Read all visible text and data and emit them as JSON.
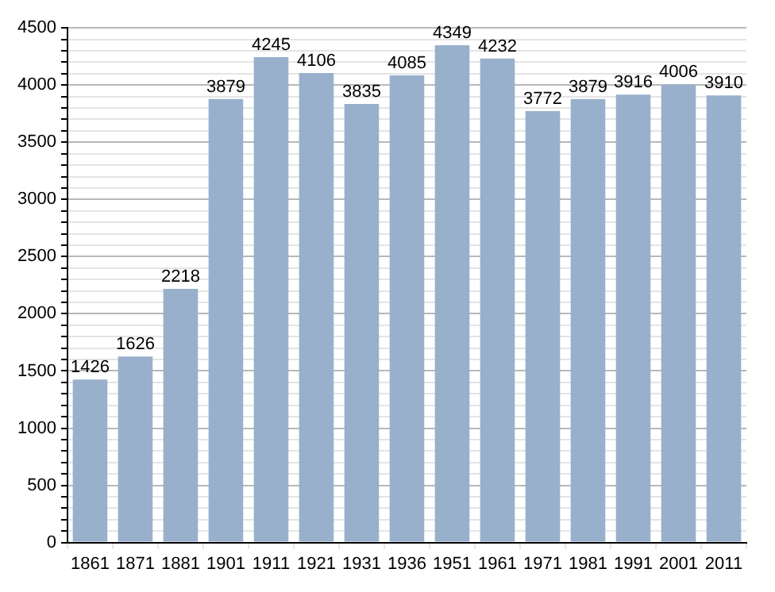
{
  "chart_data": {
    "type": "bar",
    "categories": [
      "1861",
      "1871",
      "1881",
      "1901",
      "1911",
      "1921",
      "1931",
      "1936",
      "1951",
      "1961",
      "1971",
      "1981",
      "1991",
      "2001",
      "2011"
    ],
    "values": [
      1426,
      1626,
      2218,
      3879,
      4245,
      4106,
      3835,
      4085,
      4349,
      4232,
      3772,
      3879,
      3916,
      4006,
      3910
    ],
    "color": "#98b0cc",
    "data_labels": true,
    "grid": true,
    "legend": false,
    "ylim": [
      0,
      4500
    ],
    "yticks": [
      0,
      {
        "value": 100,
        "label": null
      },
      {
        "value": 200,
        "label": null
      },
      {
        "value": 300,
        "label": null
      },
      {
        "value": 400,
        "label": null
      },
      500,
      {
        "value": 600,
        "label": null
      },
      {
        "value": 700,
        "label": null
      },
      {
        "value": 800,
        "label": null
      },
      {
        "value": 900,
        "label": null
      },
      1000,
      {
        "value": 1100,
        "label": null
      },
      {
        "value": 1200,
        "label": null
      },
      {
        "value": 1300,
        "label": null
      },
      {
        "value": 1400,
        "label": null
      },
      1500,
      {
        "value": 1600,
        "label": null
      },
      {
        "value": 1700,
        "label": null
      },
      {
        "value": 1800,
        "label": null
      },
      {
        "value": 1900,
        "label": null
      },
      2000,
      {
        "value": 2100,
        "label": null
      },
      {
        "value": 2200,
        "label": null
      },
      {
        "value": 2300,
        "label": null
      },
      {
        "value": 2400,
        "label": null
      },
      2500,
      {
        "value": 2600,
        "label": null
      },
      {
        "value": 2700,
        "label": null
      },
      {
        "value": 2800,
        "label": null
      },
      {
        "value": 2900,
        "label": null
      },
      3000,
      {
        "value": 3100,
        "label": null
      },
      {
        "value": 3200,
        "label": null
      },
      {
        "value": 3300,
        "label": null
      },
      {
        "value": 3400,
        "label": null
      },
      3500,
      {
        "value": 3600,
        "label": null
      },
      {
        "value": 3700,
        "label": null
      },
      {
        "value": 3800,
        "label": null
      },
      {
        "value": 3900,
        "label": null
      },
      4000,
      {
        "value": 4100,
        "label": null
      },
      {
        "value": 4200,
        "label": null
      },
      {
        "value": 4300,
        "label": null
      },
      {
        "value": 4400,
        "label": null
      },
      4500
    ]
  }
}
